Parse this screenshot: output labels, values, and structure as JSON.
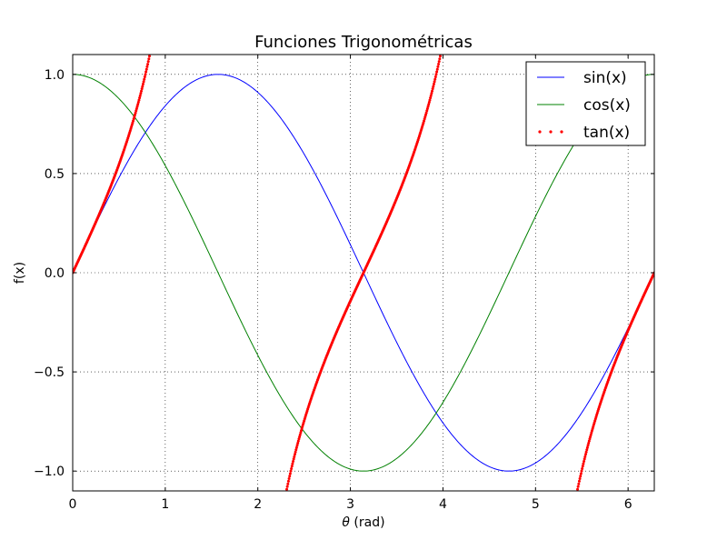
{
  "chart_data": {
    "type": "line",
    "title": "Funciones Trigonométricas",
    "xlabel_symbol": "θ",
    "xlabel_rest": " (rad)",
    "ylabel": "f(x)",
    "xlim": [
      0,
      6.2832
    ],
    "ylim": [
      -1.1,
      1.1
    ],
    "grid": true,
    "legend_position": "top-right",
    "x_ticks": [
      {
        "value": 0,
        "label": "0"
      },
      {
        "value": 1,
        "label": "1"
      },
      {
        "value": 2,
        "label": "2"
      },
      {
        "value": 3,
        "label": "3"
      },
      {
        "value": 4,
        "label": "4"
      },
      {
        "value": 5,
        "label": "5"
      },
      {
        "value": 6,
        "label": "6"
      }
    ],
    "y_ticks": [
      {
        "value": 1.0,
        "label": "1.0"
      },
      {
        "value": 0.5,
        "label": "0.5"
      },
      {
        "value": 0.0,
        "label": "0.0"
      },
      {
        "value": -0.5,
        "label": "−0.5"
      },
      {
        "value": -1.0,
        "label": "−1.0"
      }
    ],
    "series": [
      {
        "name": "sin(x)",
        "function": "sin",
        "color": "#0000ff",
        "style": "solid"
      },
      {
        "name": "cos(x)",
        "function": "cos",
        "color": "#008000",
        "style": "solid"
      },
      {
        "name": "tan(x)",
        "function": "tan",
        "color": "#ff0000",
        "style": "dotted"
      }
    ]
  }
}
